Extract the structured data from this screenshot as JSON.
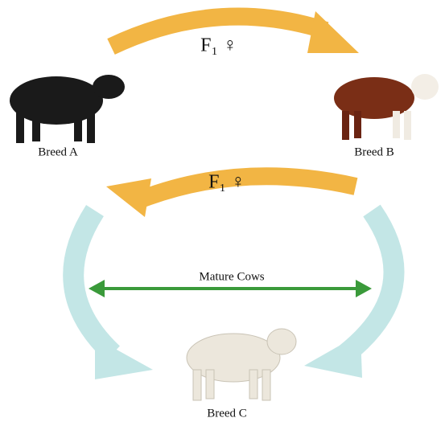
{
  "arrows": [
    {
      "label": "F₁ ♀"
    },
    {
      "label": "F₁ ♀"
    }
  ],
  "nodes": [
    {
      "label": "Breed A"
    },
    {
      "label": "Breed B"
    },
    {
      "label": "Breed C"
    }
  ],
  "center_label": "Mature Cows"
}
